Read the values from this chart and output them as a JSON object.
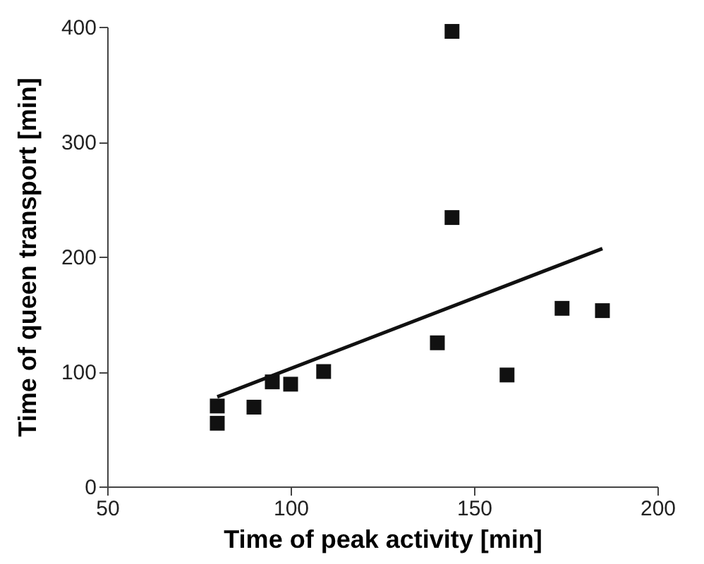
{
  "chart_data": {
    "type": "scatter",
    "xlabel": "Time of peak activity [min]",
    "ylabel": "Time of queen transport [min]",
    "xlim": [
      50,
      200
    ],
    "xticks": [
      50,
      100,
      150,
      200
    ],
    "ylim": [
      0,
      400
    ],
    "yticks": [
      0,
      100,
      200,
      300,
      400
    ],
    "grid": false,
    "marker": "square",
    "series": [
      {
        "color": "#111111",
        "x": [
          80,
          80,
          90,
          95,
          100,
          109,
          140,
          144,
          144,
          159,
          174,
          185
        ],
        "values": [
          70,
          55,
          69,
          91,
          89,
          100,
          125,
          396,
          234,
          97,
          155,
          153
        ]
      },
      {
        "type": "line",
        "color": "#111111",
        "line_style": "solid",
        "marker": "none",
        "x": [
          80,
          185
        ],
        "values": [
          78,
          207
        ]
      }
    ]
  }
}
